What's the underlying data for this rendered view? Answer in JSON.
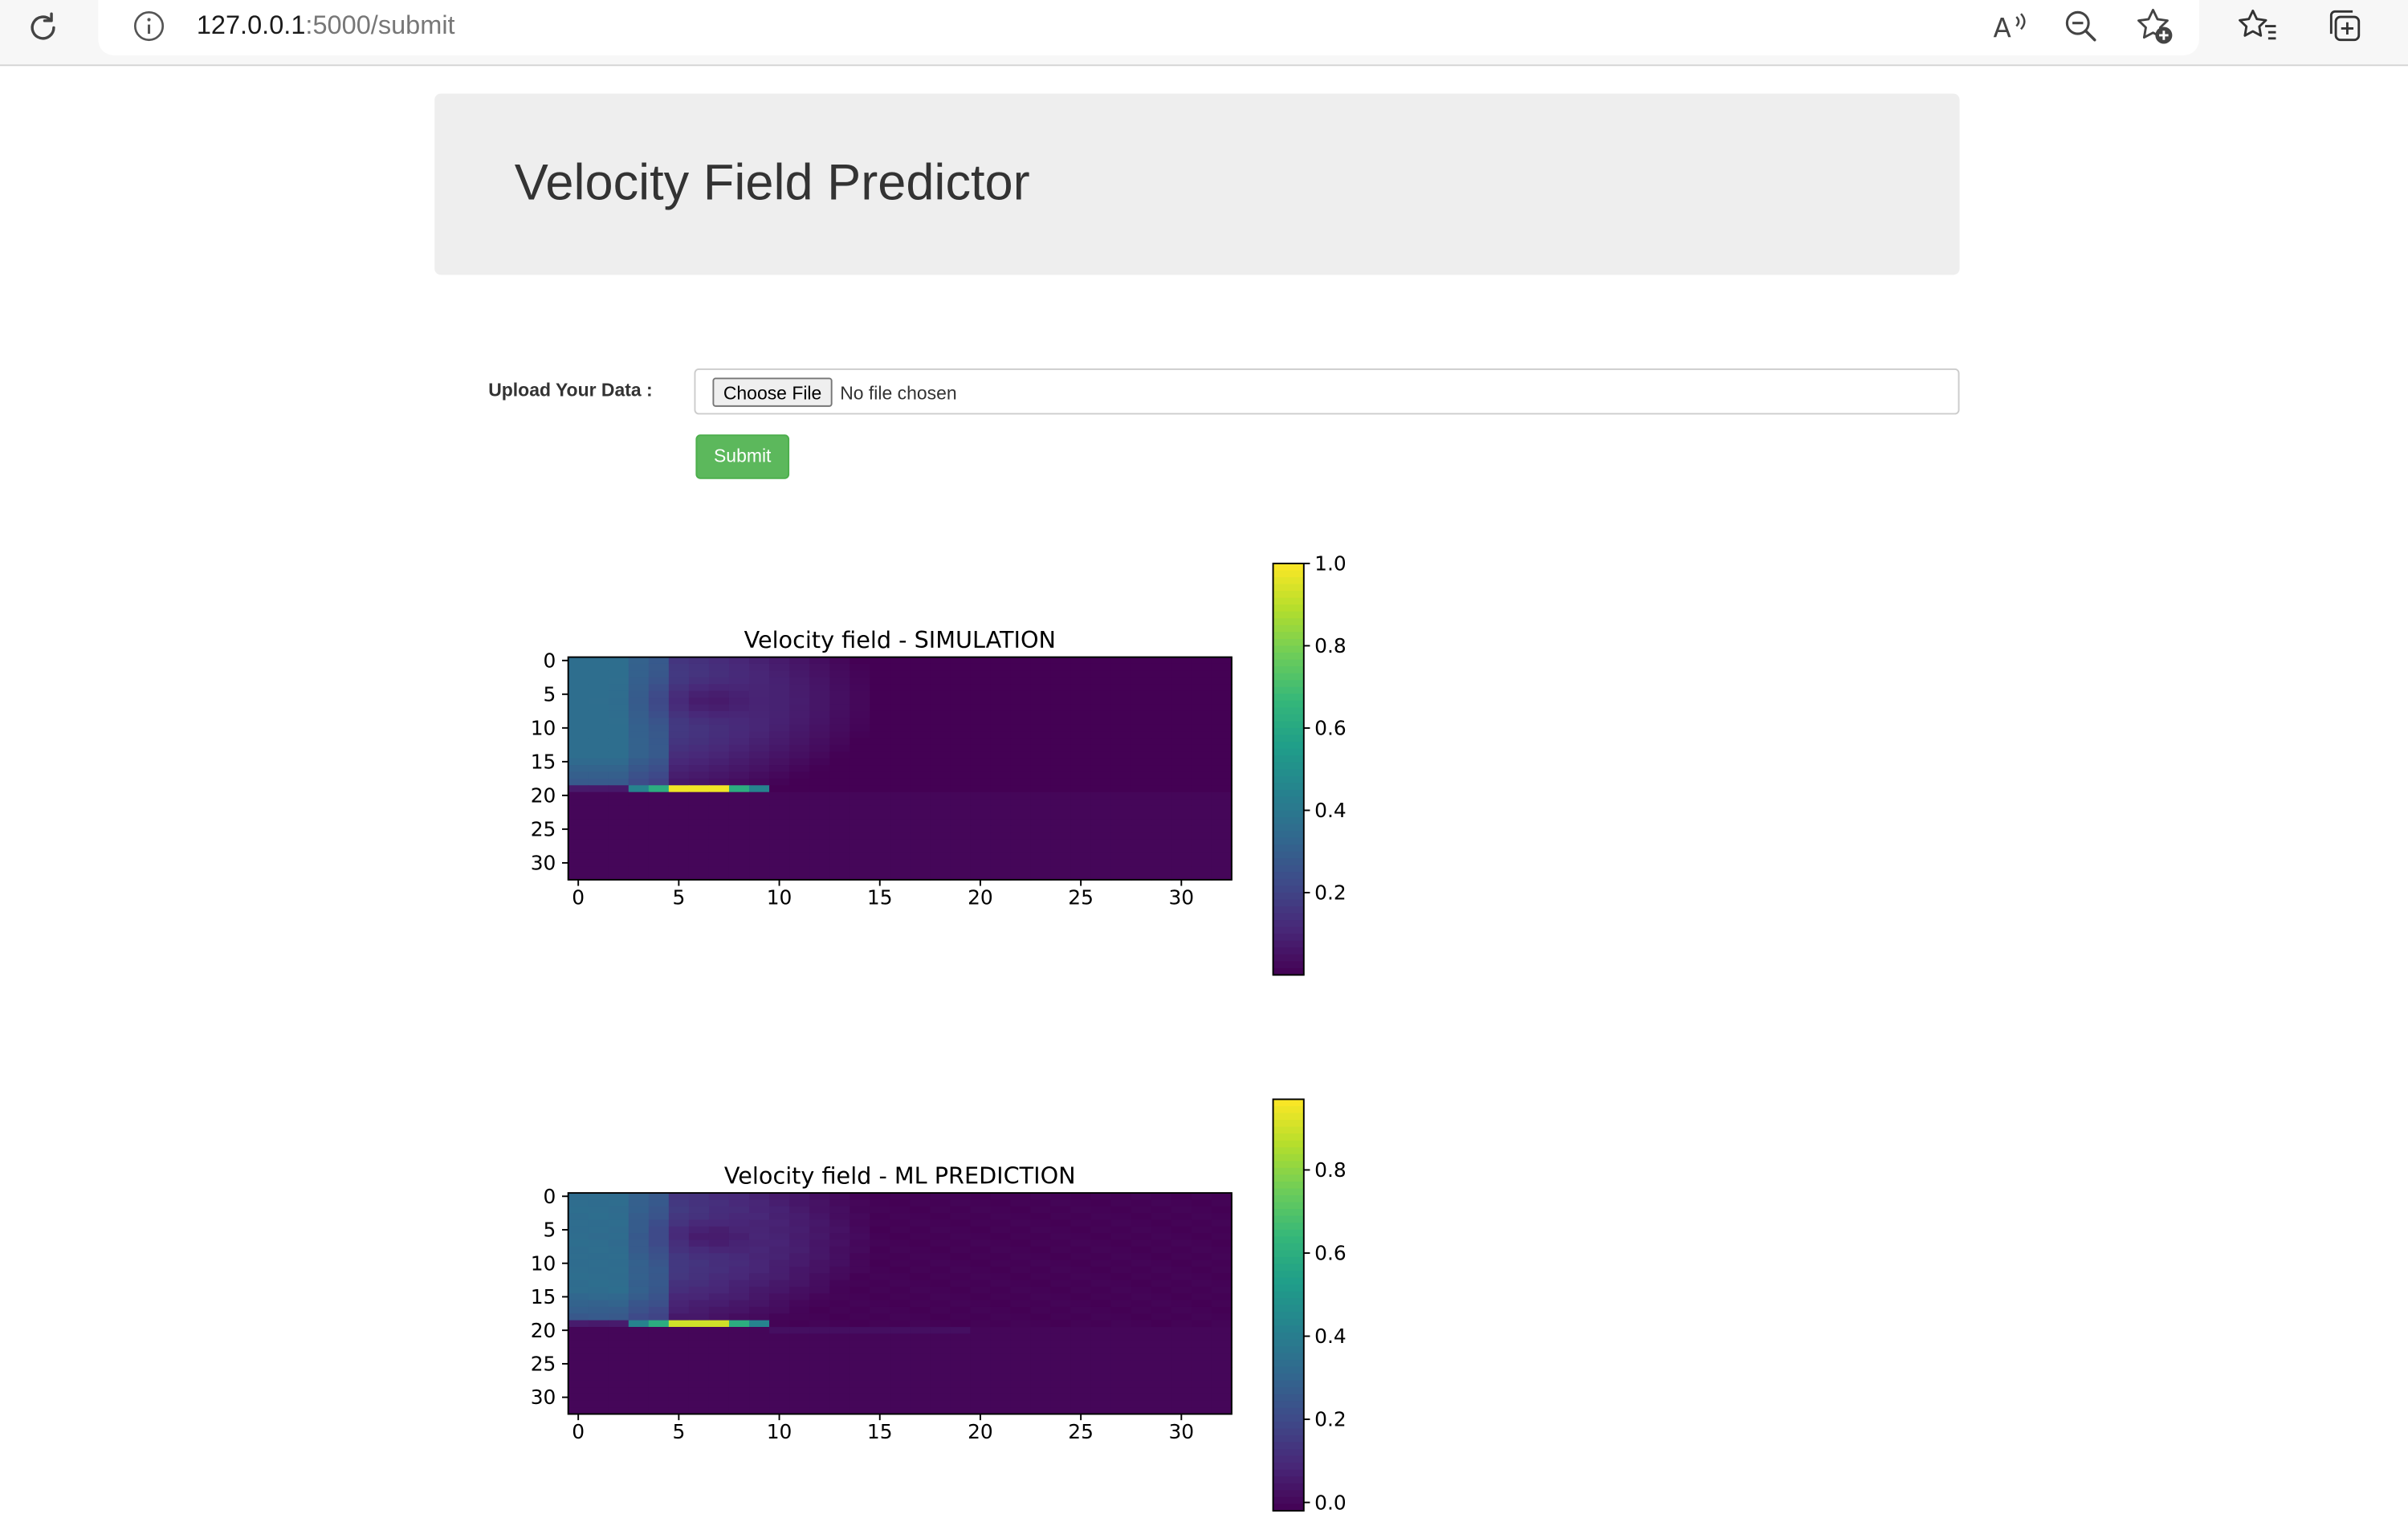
{
  "browser": {
    "url_host": "127.0.0.1",
    "url_path": ":5000/submit",
    "icons": [
      "refresh-icon",
      "site-info-icon",
      "read-aloud-icon",
      "zoom-out-icon",
      "add-favorite-icon",
      "favorites-icon",
      "collections-icon"
    ]
  },
  "header": {
    "title": "Velocity Field Predictor"
  },
  "form": {
    "upload_label": "Upload Your Data :",
    "choose_file_label": "Choose File",
    "no_file_text": "No file chosen",
    "submit_label": "Submit",
    "submit_color": "#5cb85c"
  },
  "chart_data": [
    {
      "type": "heatmap",
      "title": "Velocity field - SIMULATION",
      "colormap": "viridis",
      "grid": false,
      "x_ticks": [
        0,
        5,
        10,
        15,
        20,
        25,
        30
      ],
      "y_ticks": [
        0,
        5,
        10,
        15,
        20,
        25,
        30
      ],
      "xlim": [
        -0.5,
        32.5
      ],
      "ylim": [
        32.5,
        -0.5
      ],
      "colorbar_ticks": [
        "0.2",
        "0.4",
        "0.6",
        "0.8",
        "1.0"
      ],
      "colorbar_range": [
        0.0,
        1.0
      ]
    },
    {
      "type": "heatmap",
      "title": "Velocity field - ML PREDICTION",
      "colormap": "viridis",
      "grid": false,
      "x_ticks": [
        0,
        5,
        10,
        15,
        20,
        25,
        30
      ],
      "y_ticks": [
        0,
        5,
        10,
        15,
        20,
        25,
        30
      ],
      "xlim": [
        -0.5,
        32.5
      ],
      "ylim": [
        32.5,
        -0.5
      ],
      "colorbar_ticks": [
        "0.0",
        "0.2",
        "0.4",
        "0.6",
        "0.8"
      ],
      "colorbar_range": [
        -0.02,
        0.97
      ]
    }
  ]
}
